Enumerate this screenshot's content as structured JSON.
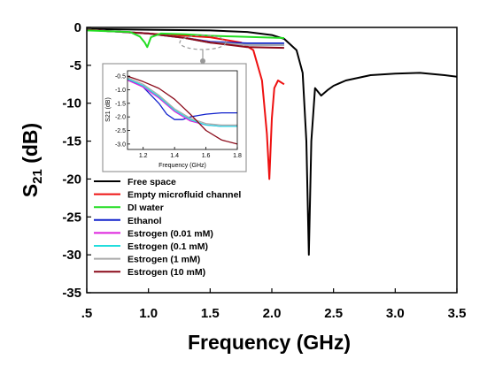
{
  "chart_data": {
    "type": "line",
    "xlabel": "Frequency (GHz)",
    "ylabel_main": "S",
    "ylabel_sub": "21",
    "ylabel_unit": " (dB)",
    "xlim": [
      0.5,
      3.5
    ],
    "ylim": [
      -35,
      0
    ],
    "x_ticks": [
      ".5",
      "1.0",
      "1.5",
      "2.0",
      "2.5",
      "3.0",
      "3.5"
    ],
    "x_tick_values": [
      0.5,
      1.0,
      1.5,
      2.0,
      2.5,
      3.0,
      3.5
    ],
    "y_ticks": [
      "0",
      "-5",
      "-10",
      "-15",
      "-20",
      "-25",
      "-30",
      "-35"
    ],
    "y_tick_values": [
      0,
      -5,
      -10,
      -15,
      -20,
      -25,
      -30,
      -35
    ],
    "grid": false,
    "legend_placement": "lower-left",
    "series": [
      {
        "name": "Free space",
        "color": "#000000",
        "x": [
          0.5,
          1.0,
          1.5,
          1.8,
          2.0,
          2.1,
          2.2,
          2.25,
          2.28,
          2.3,
          2.32,
          2.35,
          2.4,
          2.45,
          2.5,
          2.6,
          2.8,
          3.0,
          3.2,
          3.4,
          3.5
        ],
        "y": [
          -0.2,
          -0.3,
          -0.4,
          -0.6,
          -1.0,
          -1.5,
          -3.0,
          -6.0,
          -15.0,
          -30.0,
          -15.0,
          -8.0,
          -9.0,
          -8.3,
          -7.7,
          -7.0,
          -6.3,
          -6.1,
          -6.0,
          -6.3,
          -6.5
        ]
      },
      {
        "name": "Empty microfluid channel",
        "color": "#ee1111",
        "x": [
          0.5,
          1.0,
          1.5,
          1.75,
          1.85,
          1.92,
          1.96,
          1.98,
          2.0,
          2.02,
          2.05,
          2.1
        ],
        "y": [
          -0.3,
          -0.8,
          -1.3,
          -2.0,
          -3.0,
          -7.0,
          -14.0,
          -20.0,
          -12.0,
          -8.0,
          -7.0,
          -7.5
        ]
      },
      {
        "name": "DI water",
        "color": "#22dd22",
        "x": [
          0.5,
          0.85,
          0.93,
          0.97,
          0.99,
          1.02,
          1.1,
          1.3,
          1.5,
          1.7,
          1.9,
          2.1
        ],
        "y": [
          -0.4,
          -0.6,
          -1.2,
          -2.0,
          -2.6,
          -1.3,
          -0.8,
          -0.9,
          -1.1,
          -1.2,
          -1.3,
          -1.4
        ]
      },
      {
        "name": "Ethanol",
        "color": "#1122cc",
        "x": [
          0.5,
          1.0,
          1.3,
          1.5,
          1.8,
          2.1
        ],
        "y": [
          -0.3,
          -0.8,
          -1.4,
          -1.9,
          -2.1,
          -2.1
        ]
      },
      {
        "name": "Estrogen (0.01 mM)",
        "color": "#dd22dd",
        "x": [
          0.5,
          1.0,
          1.3,
          1.5,
          1.8,
          2.1
        ],
        "y": [
          -0.3,
          -0.8,
          -1.4,
          -2.0,
          -2.3,
          -2.3
        ]
      },
      {
        "name": "Estrogen (0.1 mM)",
        "color": "#22dddd",
        "x": [
          0.5,
          1.0,
          1.3,
          1.5,
          1.8,
          2.1
        ],
        "y": [
          -0.3,
          -0.8,
          -1.4,
          -2.0,
          -2.3,
          -2.3
        ]
      },
      {
        "name": "Estrogen (1 mM)",
        "color": "#aaaaaa",
        "x": [
          0.5,
          1.0,
          1.3,
          1.5,
          1.8,
          2.1
        ],
        "y": [
          -0.3,
          -0.8,
          -1.4,
          -2.0,
          -2.3,
          -2.3
        ]
      },
      {
        "name": "Estrogen (10 mM)",
        "color": "#8b0a1a",
        "x": [
          0.5,
          1.0,
          1.3,
          1.5,
          1.8,
          2.1
        ],
        "y": [
          -0.3,
          -0.8,
          -1.4,
          -2.0,
          -2.6,
          -2.7
        ]
      }
    ],
    "inset": {
      "xlabel": "Frequency (GHz)",
      "ylabel": "S21 (dB)",
      "xlim": [
        1.1,
        1.8
      ],
      "ylim": [
        -3.2,
        -0.3
      ],
      "x_ticks": [
        "1.2",
        "1.4",
        "1.6",
        "1.8"
      ],
      "x_tick_values": [
        1.2,
        1.4,
        1.6,
        1.8
      ],
      "y_ticks": [
        "-0.5",
        "-1.0",
        "-1.5",
        "-2.0",
        "-2.5",
        "-3.0"
      ],
      "y_tick_values": [
        -0.5,
        -1.0,
        -1.5,
        -2.0,
        -2.5,
        -3.0
      ],
      "series": [
        {
          "name": "Ethanol",
          "color": "#1122cc",
          "x": [
            1.1,
            1.2,
            1.3,
            1.35,
            1.4,
            1.45,
            1.5,
            1.55,
            1.6,
            1.7,
            1.8
          ],
          "y": [
            -0.6,
            -0.9,
            -1.5,
            -1.9,
            -2.1,
            -2.1,
            -2.0,
            -1.95,
            -1.9,
            -1.85,
            -1.85
          ]
        },
        {
          "name": "Estrogen (0.01 mM)",
          "color": "#dd22dd",
          "x": [
            1.1,
            1.2,
            1.3,
            1.4,
            1.5,
            1.6,
            1.7,
            1.8
          ],
          "y": [
            -0.65,
            -0.9,
            -1.3,
            -1.8,
            -2.15,
            -2.3,
            -2.35,
            -2.35
          ]
        },
        {
          "name": "Estrogen (0.1 mM)",
          "color": "#22dddd",
          "x": [
            1.1,
            1.2,
            1.3,
            1.4,
            1.5,
            1.6,
            1.7,
            1.8
          ],
          "y": [
            -0.6,
            -0.85,
            -1.25,
            -1.75,
            -2.1,
            -2.3,
            -2.35,
            -2.35
          ]
        },
        {
          "name": "Estrogen (1 mM)",
          "color": "#aaaaaa",
          "x": [
            1.1,
            1.2,
            1.3,
            1.4,
            1.5,
            1.6,
            1.7,
            1.8
          ],
          "y": [
            -0.55,
            -0.8,
            -1.2,
            -1.7,
            -2.05,
            -2.25,
            -2.3,
            -2.3
          ]
        },
        {
          "name": "Estrogen (10 mM)",
          "color": "#8b0a1a",
          "x": [
            1.1,
            1.2,
            1.3,
            1.4,
            1.5,
            1.6,
            1.7,
            1.8
          ],
          "y": [
            -0.5,
            -0.7,
            -0.95,
            -1.35,
            -1.9,
            -2.5,
            -2.85,
            -3.0
          ]
        }
      ]
    }
  }
}
